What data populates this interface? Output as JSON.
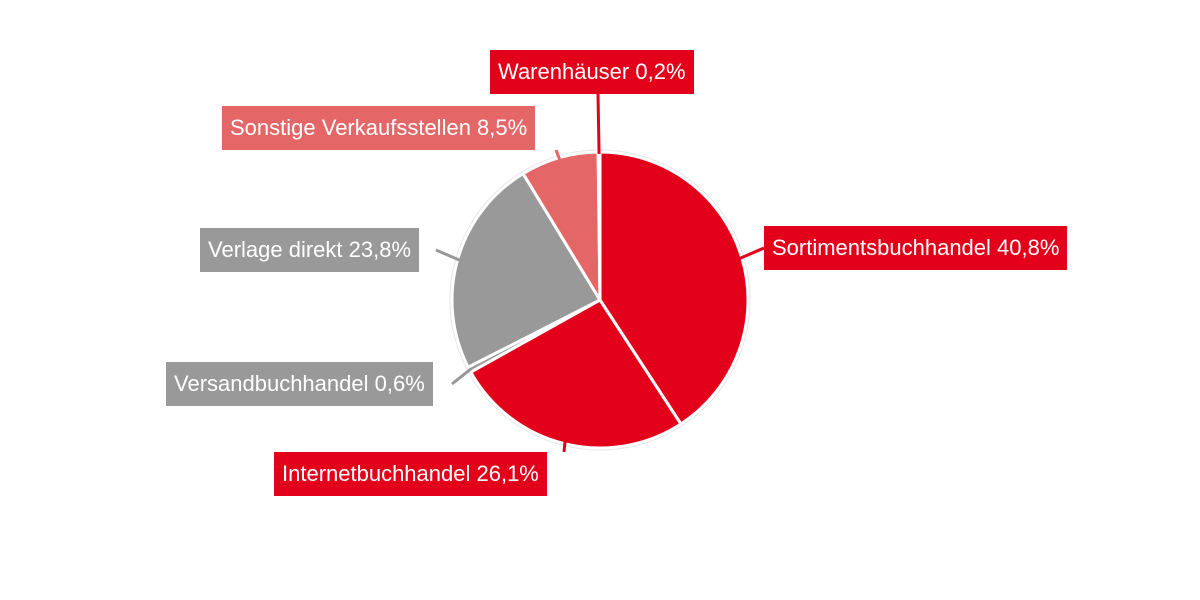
{
  "chart_data": {
    "type": "pie",
    "start_angle_deg": 0,
    "direction": "clockwise",
    "slices": [
      {
        "name": "Sortimentsbuchhandel",
        "value": 40.8,
        "label": "Sortimentsbuchhandel 40,8%",
        "color": "#e2001a"
      },
      {
        "name": "Internetbuchhandel",
        "value": 26.1,
        "label": "Internetbuchhandel 26,1%",
        "color": "#e2001a"
      },
      {
        "name": "Versandbuchhandel",
        "value": 0.6,
        "label": "Versandbuchhandel 0,6%",
        "color": "#999999"
      },
      {
        "name": "Verlage direkt",
        "value": 23.8,
        "label": "Verlage direkt 23,8%",
        "color": "#999999"
      },
      {
        "name": "Sonstige Verkaufsstellen",
        "value": 8.5,
        "label": "Sonstige Verkaufsstellen 8,5%",
        "color": "#e56666"
      },
      {
        "name": "Warenhäuser",
        "value": 0.2,
        "label": "Warenhäuser 0,2%",
        "color": "#e2001a"
      }
    ]
  }
}
